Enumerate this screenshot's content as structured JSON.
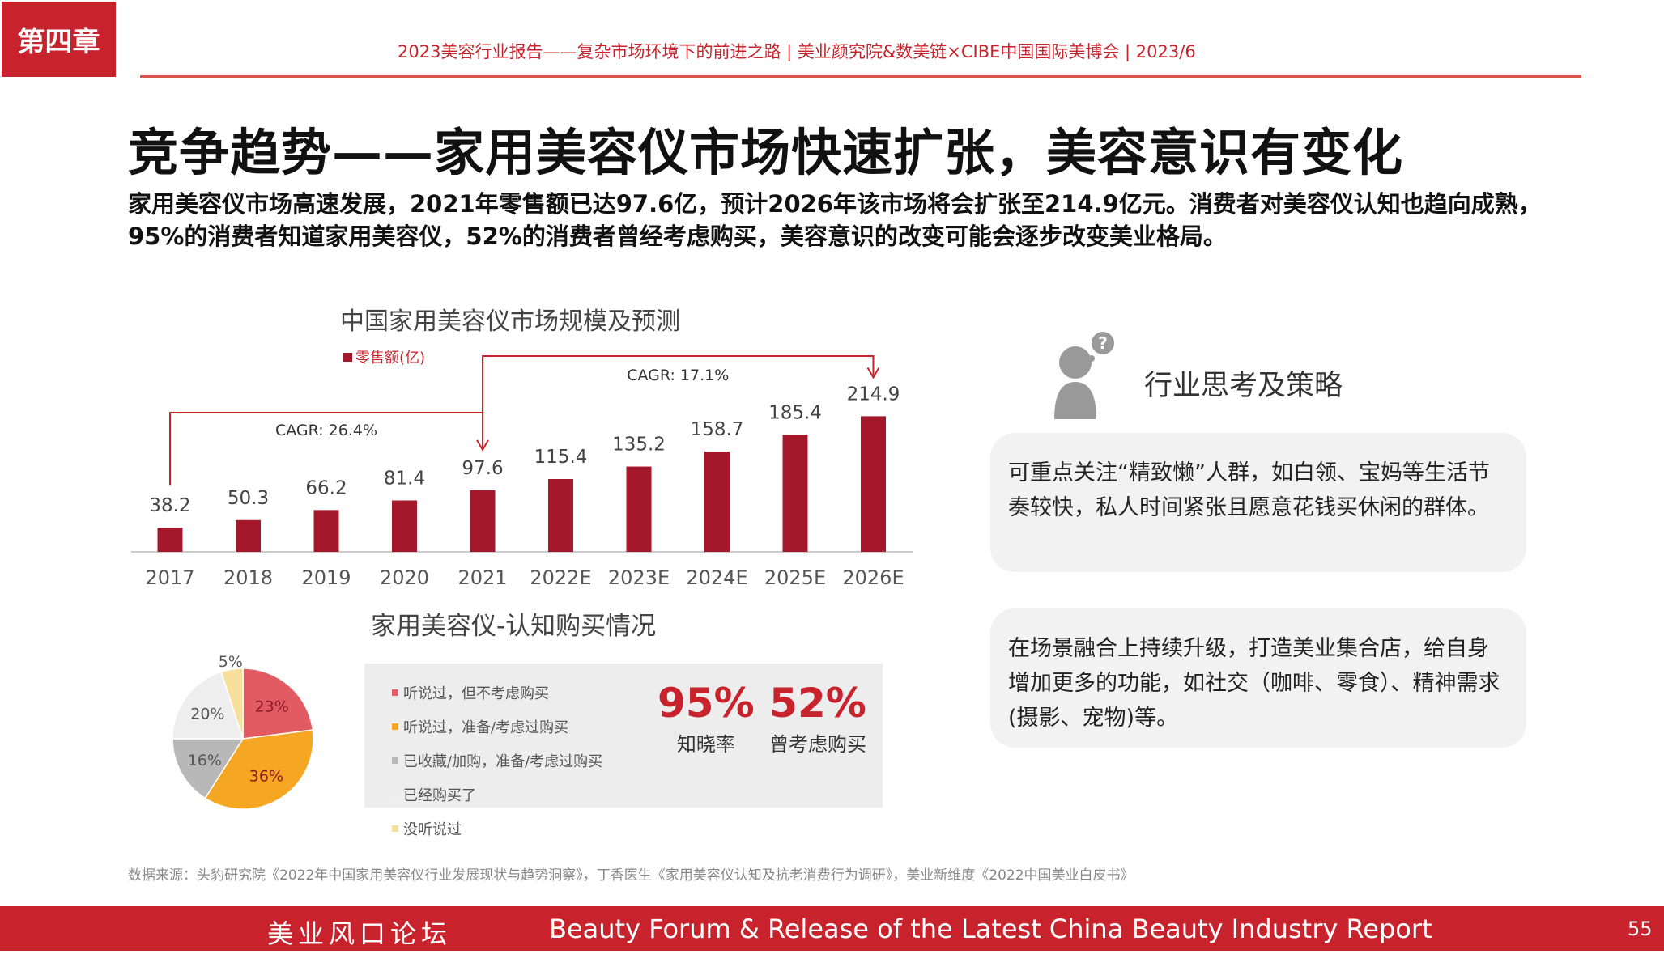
{
  "header": {
    "chapter": "第四章",
    "report_line": "2023美容行业报告——复杂市场环境下的前进之路 | 美业颜究院&数美链×CIBE中国国际美博会 | 2023/6"
  },
  "page_title": "竞争趋势——家用美容仪市场快速扩张，美容意识有变化",
  "intro": "家用美容仪市场高速发展，2021年零售额已达97.6亿，预计2026年该市场将会扩张至214.9亿元。消费者对美容仪认知也趋向成熟，95%的消费者知道家用美容仪，52%的消费者曾经考虑购买，美容意识的改变可能会逐步改变美业格局。",
  "chart_data": [
    {
      "type": "bar",
      "title": "中国家用美容仪市场规模及预测",
      "categories": [
        "2017",
        "2018",
        "2019",
        "2020",
        "2021",
        "2022E",
        "2023E",
        "2024E",
        "2025E",
        "2026E"
      ],
      "series": [
        {
          "name": "零售额(亿)",
          "values": [
            38.2,
            50.3,
            66.2,
            81.4,
            97.6,
            115.4,
            135.2,
            158.7,
            185.4,
            214.9
          ]
        }
      ],
      "annotations": [
        "CAGR: 26.4%",
        "CAGR: 17.1%"
      ],
      "ylim": [
        0,
        230
      ],
      "bar_color": "#a5182b"
    },
    {
      "type": "pie",
      "title": "家用美容仪-认知购买情况",
      "labels": [
        "听说过，但不考虑购买",
        "听说过，准备/考虑过购买",
        "已收藏/加购，准备/考虑过购买",
        "已经购买了",
        "没听说过"
      ],
      "values": [
        23,
        36,
        16,
        20,
        5
      ],
      "value_labels": [
        "23%",
        "36%",
        "16%",
        "20%",
        "5%"
      ],
      "colors": [
        "#e25b62",
        "#f5a623",
        "#b8b8b8",
        "#eeeeee",
        "#f7df9c"
      ]
    }
  ],
  "stats": [
    {
      "value": "95%",
      "label": "知晓率"
    },
    {
      "value": "52%",
      "label": "曾考虑购买"
    }
  ],
  "advice": {
    "title": "行业思考及策略",
    "cards": [
      "可重点关注“精致懒”人群，如白领、宝妈等生活节奏较快，私人时间紧张且愿意花钱买休闲的群体。",
      "在场景融合上持续升级，打造美业集合店，给自身增加更多的功能，如社交（咖啡、零食）、精神需求(摄影、宠物)等。"
    ]
  },
  "source": "数据来源：头豹研究院《2022年中国家用美容仪行业发展现状与趋势洞察》，丁香医生《家用美容仪认知及抗老消费行为调研》，美业新维度《2022中国美业白皮书》",
  "footer": {
    "cn": "美业风口论坛",
    "en": "Beauty Forum & Release of the Latest China Beauty Industry Report",
    "page": "55"
  },
  "colors": {
    "accent": "#c8232c",
    "bar": "#a5182b"
  }
}
